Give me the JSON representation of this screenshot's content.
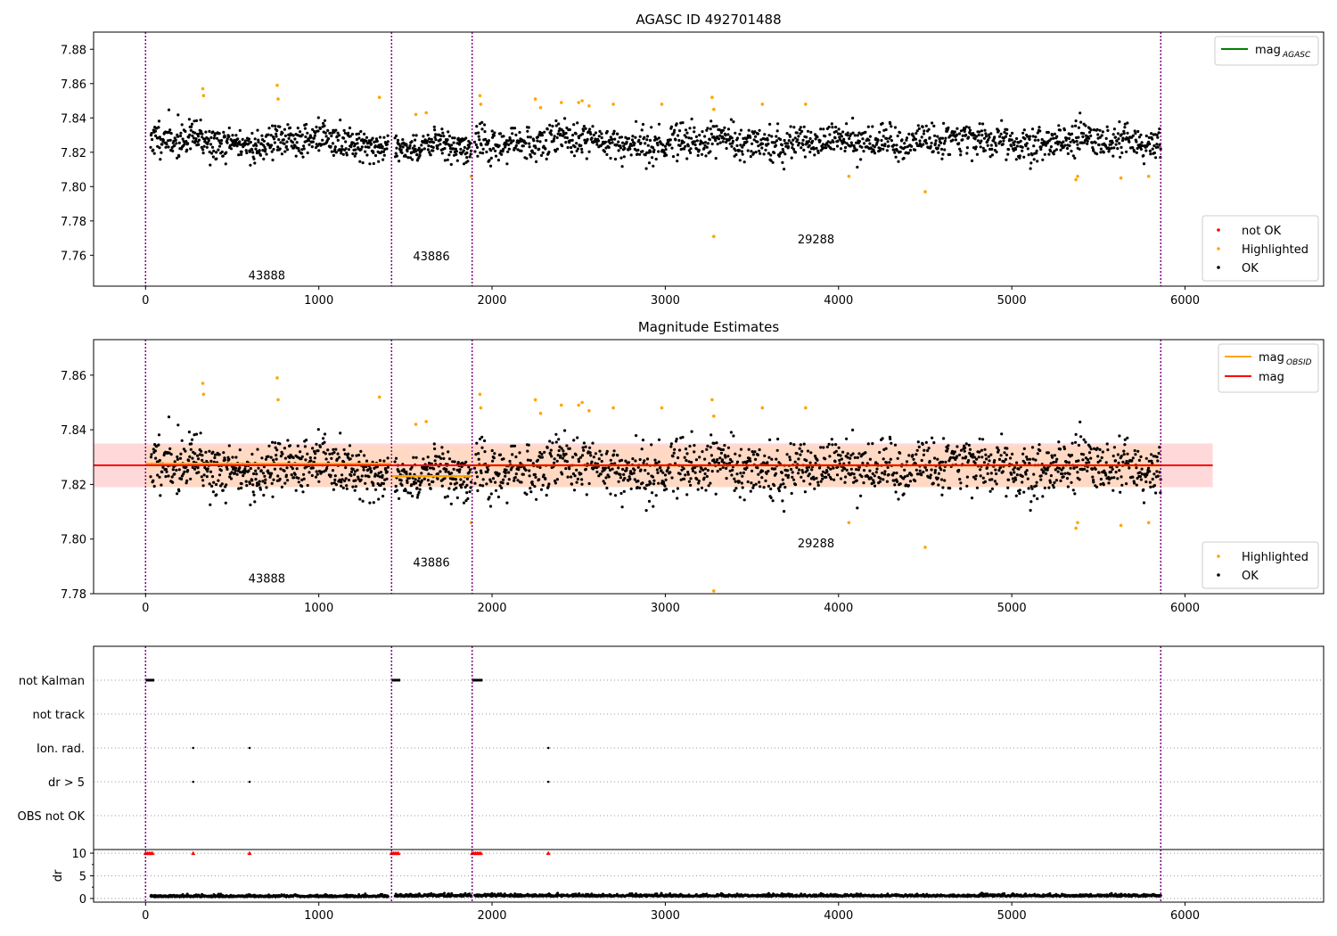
{
  "chart_data": [
    {
      "type": "scatter",
      "title": "AGASC ID 492701488",
      "xlim": [
        -300,
        6800
      ],
      "ylim": [
        7.742,
        7.89
      ],
      "xticks": [
        0,
        1000,
        2000,
        3000,
        4000,
        5000,
        6000
      ],
      "xtick_labels": [
        "0",
        "1000",
        "2000",
        "3000",
        "4000",
        "5000",
        "6000"
      ],
      "yticks": [
        7.76,
        7.78,
        7.8,
        7.82,
        7.84,
        7.86,
        7.88
      ],
      "ytick_labels": [
        "7.76",
        "7.78",
        "7.80",
        "7.82",
        "7.84",
        "7.86",
        "7.88"
      ],
      "grid": false,
      "obsid_boundaries": [
        0,
        1420,
        1885,
        5860
      ],
      "obsid_labels": [
        {
          "text": "43888",
          "x": 700,
          "y": 7.746
        },
        {
          "text": "43886",
          "x": 1650,
          "y": 7.757
        },
        {
          "text": "29288",
          "x": 3870,
          "y": 7.767
        }
      ],
      "legend_top": {
        "placement": "top-right",
        "entries": [
          {
            "label_main": "mag",
            "label_sub": "AGASC",
            "color": "#008000"
          }
        ]
      },
      "legend_bottom": {
        "placement": "lower-right",
        "entries": [
          {
            "label": "not OK",
            "color": "#ff0000"
          },
          {
            "label": "Highlighted",
            "color": "#ffa500"
          },
          {
            "label": "OK",
            "color": "#000000"
          }
        ]
      },
      "series": [
        {
          "name": "OK",
          "color": "#000000",
          "segments": [
            {
              "x0": 30,
              "x1": 1400,
              "base": 7.826,
              "spread": 0.008,
              "n": 520,
              "seed": 11
            },
            {
              "x0": 1440,
              "x1": 1880,
              "base": 7.822,
              "spread": 0.007,
              "n": 180,
              "seed": 12
            },
            {
              "x0": 1900,
              "x1": 5860,
              "base": 7.826,
              "spread": 0.008,
              "n": 1350,
              "seed": 13
            }
          ]
        },
        {
          "name": "Highlighted",
          "color": "#ffa500",
          "points": [
            [
              330,
              7.857
            ],
            [
              335,
              7.853
            ],
            [
              760,
              7.859
            ],
            [
              765,
              7.851
            ],
            [
              1350,
              7.852
            ],
            [
              1560,
              7.842
            ],
            [
              1620,
              7.843
            ],
            [
              1880,
              7.806
            ],
            [
              1930,
              7.853
            ],
            [
              1935,
              7.848
            ],
            [
              2250,
              7.851
            ],
            [
              2280,
              7.846
            ],
            [
              2400,
              7.849
            ],
            [
              2500,
              7.849
            ],
            [
              2520,
              7.85
            ],
            [
              2560,
              7.847
            ],
            [
              2700,
              7.848
            ],
            [
              2980,
              7.848
            ],
            [
              3270,
              7.852
            ],
            [
              3280,
              7.845
            ],
            [
              3280,
              7.771
            ],
            [
              3560,
              7.848
            ],
            [
              3810,
              7.848
            ],
            [
              4060,
              7.806
            ],
            [
              4500,
              7.797
            ],
            [
              5370,
              7.804
            ],
            [
              5380,
              7.806
            ],
            [
              5630,
              7.805
            ],
            [
              5790,
              7.806
            ]
          ]
        }
      ]
    },
    {
      "type": "scatter",
      "title": "Magnitude Estimates",
      "xlim": [
        -300,
        6800
      ],
      "ylim": [
        7.78,
        7.873
      ],
      "xticks": [
        0,
        1000,
        2000,
        3000,
        4000,
        5000,
        6000
      ],
      "xtick_labels": [
        "0",
        "1000",
        "2000",
        "3000",
        "4000",
        "5000",
        "6000"
      ],
      "yticks": [
        7.78,
        7.8,
        7.82,
        7.84,
        7.86
      ],
      "ytick_labels": [
        "7.78",
        "7.80",
        "7.82",
        "7.84",
        "7.86"
      ],
      "grid": false,
      "obsid_boundaries": [
        0,
        1420,
        1885,
        5860
      ],
      "obsid_labels": [
        {
          "text": "43888",
          "x": 700,
          "y": 7.784
        },
        {
          "text": "43886",
          "x": 1650,
          "y": 7.79
        },
        {
          "text": "29288",
          "x": 3870,
          "y": 7.797
        }
      ],
      "band": {
        "x0": -300,
        "x1": 6160,
        "y0": 7.819,
        "y1": 7.835,
        "color": "#ffcccc"
      },
      "band_obsid": {
        "x0": 0,
        "x1": 5860,
        "y0": 7.819,
        "y1": 7.834,
        "color": "#ffd9b3"
      },
      "mag_line": {
        "x0": -300,
        "x1": 6160,
        "y": 7.827,
        "color": "#ff0000"
      },
      "mag_obsid_lines": [
        {
          "x0": 0,
          "x1": 1420,
          "y": 7.8275
        },
        {
          "x0": 1420,
          "x1": 1885,
          "y": 7.823
        },
        {
          "x0": 1885,
          "x1": 5860,
          "y": 7.827
        }
      ],
      "legend_top": {
        "placement": "top-right",
        "entries": [
          {
            "label_main": "mag",
            "label_sub": "OBSID",
            "color": "#ffa500"
          },
          {
            "label_main": "mag",
            "label_sub": "",
            "color": "#ff0000"
          }
        ]
      },
      "legend_bottom": {
        "placement": "lower-right",
        "entries": [
          {
            "label": "Highlighted",
            "color": "#ffa500"
          },
          {
            "label": "OK",
            "color": "#000000"
          }
        ]
      },
      "series": [
        {
          "name": "OK",
          "color": "#000000",
          "segments": [
            {
              "x0": 30,
              "x1": 1400,
              "base": 7.826,
              "spread": 0.008,
              "n": 520,
              "seed": 11
            },
            {
              "x0": 1440,
              "x1": 1880,
              "base": 7.822,
              "spread": 0.007,
              "n": 180,
              "seed": 12
            },
            {
              "x0": 1900,
              "x1": 5860,
              "base": 7.826,
              "spread": 0.008,
              "n": 1350,
              "seed": 13
            }
          ]
        },
        {
          "name": "Highlighted",
          "color": "#ffa500",
          "points": [
            [
              330,
              7.857
            ],
            [
              335,
              7.853
            ],
            [
              760,
              7.859
            ],
            [
              765,
              7.851
            ],
            [
              1350,
              7.852
            ],
            [
              1560,
              7.842
            ],
            [
              1620,
              7.843
            ],
            [
              1880,
              7.806
            ],
            [
              1930,
              7.853
            ],
            [
              1935,
              7.848
            ],
            [
              2250,
              7.851
            ],
            [
              2280,
              7.846
            ],
            [
              2400,
              7.849
            ],
            [
              2500,
              7.849
            ],
            [
              2520,
              7.85
            ],
            [
              2560,
              7.847
            ],
            [
              2700,
              7.848
            ],
            [
              2980,
              7.848
            ],
            [
              3270,
              7.851
            ],
            [
              3280,
              7.845
            ],
            [
              3280,
              7.781
            ],
            [
              3560,
              7.848
            ],
            [
              3810,
              7.848
            ],
            [
              4060,
              7.806
            ],
            [
              4500,
              7.797
            ],
            [
              5370,
              7.804
            ],
            [
              5380,
              7.806
            ],
            [
              5630,
              7.805
            ],
            [
              5790,
              7.806
            ]
          ]
        }
      ]
    },
    {
      "type": "scatter",
      "title": "",
      "xlim": [
        -300,
        6800
      ],
      "xticks": [
        0,
        1000,
        2000,
        3000,
        4000,
        5000,
        6000
      ],
      "xtick_labels": [
        "0",
        "1000",
        "2000",
        "3000",
        "4000",
        "5000",
        "6000"
      ],
      "obsid_boundaries": [
        0,
        1420,
        1885,
        5860
      ],
      "flag_rows": [
        "not Kalman",
        "not track",
        "Ion. rad.",
        "dr > 5",
        "OBS not OK"
      ],
      "flag_marks": [
        {
          "row": "not Kalman",
          "x0": 0,
          "x1": 50
        },
        {
          "row": "not Kalman",
          "x0": 1420,
          "x1": 1470
        },
        {
          "row": "not Kalman",
          "x0": 1885,
          "x1": 1945
        },
        {
          "row": "Ion. rad.",
          "x0": 275,
          "x1": 275
        },
        {
          "row": "Ion. rad.",
          "x0": 600,
          "x1": 600
        },
        {
          "row": "Ion. rad.",
          "x0": 2325,
          "x1": 2325
        },
        {
          "row": "dr > 5",
          "x0": 275,
          "x1": 275
        },
        {
          "row": "dr > 5",
          "x0": 600,
          "x1": 600
        },
        {
          "row": "dr > 5",
          "x0": 2325,
          "x1": 2325
        }
      ],
      "dr_panel": {
        "ylabel": "dr",
        "ylim": [
          -0.8,
          10.8
        ],
        "yticks": [
          0,
          5,
          10
        ],
        "ytick_labels": [
          "0",
          "5",
          "10"
        ],
        "clipped_marks": [
          [
            0,
            10
          ],
          [
            10,
            10
          ],
          [
            20,
            10
          ],
          [
            30,
            10
          ],
          [
            40,
            10
          ],
          [
            275,
            10
          ],
          [
            600,
            10
          ],
          [
            1420,
            10
          ],
          [
            1430,
            10
          ],
          [
            1440,
            10
          ],
          [
            1450,
            10
          ],
          [
            1460,
            10
          ],
          [
            1885,
            10
          ],
          [
            1895,
            10
          ],
          [
            1905,
            10
          ],
          [
            1915,
            10
          ],
          [
            1925,
            10
          ],
          [
            1935,
            10
          ],
          [
            2325,
            10
          ]
        ],
        "clipped_color": "#ff0000",
        "dr_segments": [
          {
            "x0": 30,
            "x1": 1400,
            "base": 0.5,
            "spread": 0.35,
            "n": 520,
            "seed": 21
          },
          {
            "x0": 1440,
            "x1": 1880,
            "base": 0.6,
            "spread": 0.4,
            "n": 180,
            "seed": 22
          },
          {
            "x0": 1900,
            "x1": 5860,
            "base": 0.6,
            "spread": 0.4,
            "n": 1350,
            "seed": 23
          }
        ]
      }
    }
  ]
}
